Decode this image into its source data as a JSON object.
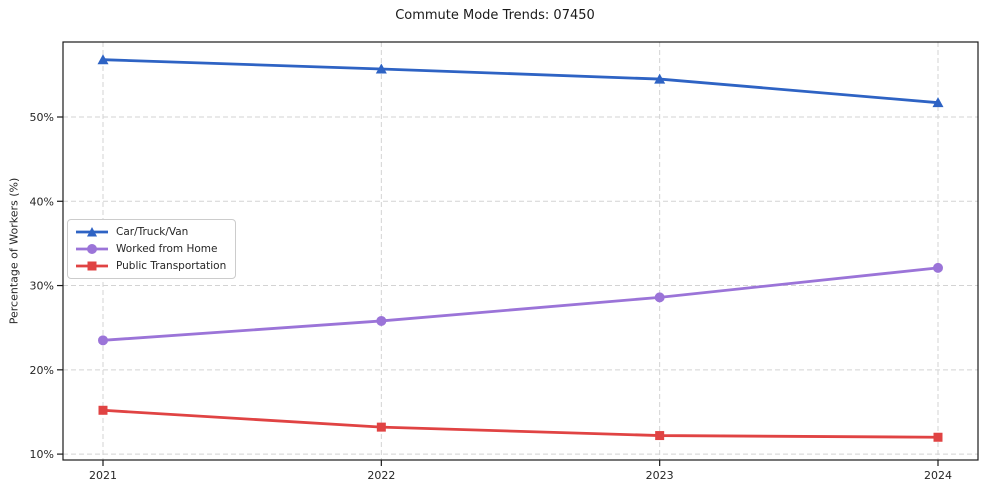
{
  "chart_data": {
    "type": "line",
    "title": "Commute Mode Trends: 07450",
    "xlabel": "",
    "ylabel": "Percentage of Workers (%)",
    "x": [
      "2021",
      "2022",
      "2023",
      "2024"
    ],
    "series": [
      {
        "name": "Car/Truck/Van",
        "marker": "triangle",
        "color": "#2e63c4",
        "values": [
          56.8,
          55.7,
          54.5,
          51.7
        ]
      },
      {
        "name": "Worked from Home",
        "marker": "circle",
        "color": "#9b74d8",
        "values": [
          23.5,
          25.8,
          28.6,
          32.1
        ]
      },
      {
        "name": "Public Transportation",
        "marker": "square",
        "color": "#e04343",
        "values": [
          15.2,
          13.2,
          12.2,
          12.0
        ]
      }
    ],
    "y_ticks": [
      {
        "label": "10%",
        "value": 10
      },
      {
        "label": "20%",
        "value": 20
      },
      {
        "label": "30%",
        "value": 30
      },
      {
        "label": "40%",
        "value": 40
      },
      {
        "label": "50%",
        "value": 50
      }
    ],
    "ylim": [
      9.3,
      58.9
    ],
    "grid": true,
    "grid_style": "dashed",
    "legend_position": "center-left",
    "colors": {
      "grid": "#d3d3d3",
      "spine": "#1a1a1a",
      "tick_text": "#262626"
    }
  }
}
